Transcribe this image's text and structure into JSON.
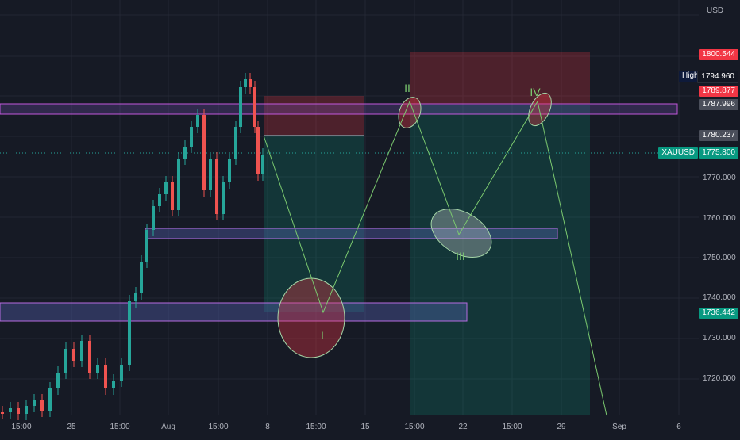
{
  "chart_data": {
    "type": "candlestick",
    "symbol": "XAUUSD",
    "currency": "USD",
    "y_ticks": [
      "1770.000",
      "1760.000",
      "1750.000",
      "1740.000",
      "1730.000",
      "1720.000"
    ],
    "x_ticks": [
      "15:00",
      "25",
      "15:00",
      "Aug",
      "15:00",
      "8",
      "15:00",
      "15",
      "15:00",
      "22",
      "15:00",
      "29",
      "Sep",
      "6"
    ],
    "price_labels": {
      "top": {
        "value": "1800.544",
        "color": "#f23645"
      },
      "high_tag": "High",
      "high": {
        "value": "1794.960",
        "color": "#131722"
      },
      "red2": {
        "value": "1789.877",
        "color": "#f23645"
      },
      "grey1": {
        "value": "1787.996",
        "color": "#4a4e5a"
      },
      "grey2": {
        "value": "1780.237",
        "color": "#4a4e5a"
      },
      "symbol_tag": "XAUUSD",
      "last": {
        "value": "1775.800",
        "color": "#089981"
      },
      "green2": {
        "value": "1736.442",
        "color": "#089981"
      }
    },
    "wave_labels": [
      "I",
      "II",
      "III",
      "IV"
    ],
    "colors": {
      "up": "#26a69a",
      "down": "#ef5350",
      "zone": "#9c27b0",
      "projection": "#7bc96f",
      "target": "#089981",
      "stop": "#f23645"
    }
  }
}
